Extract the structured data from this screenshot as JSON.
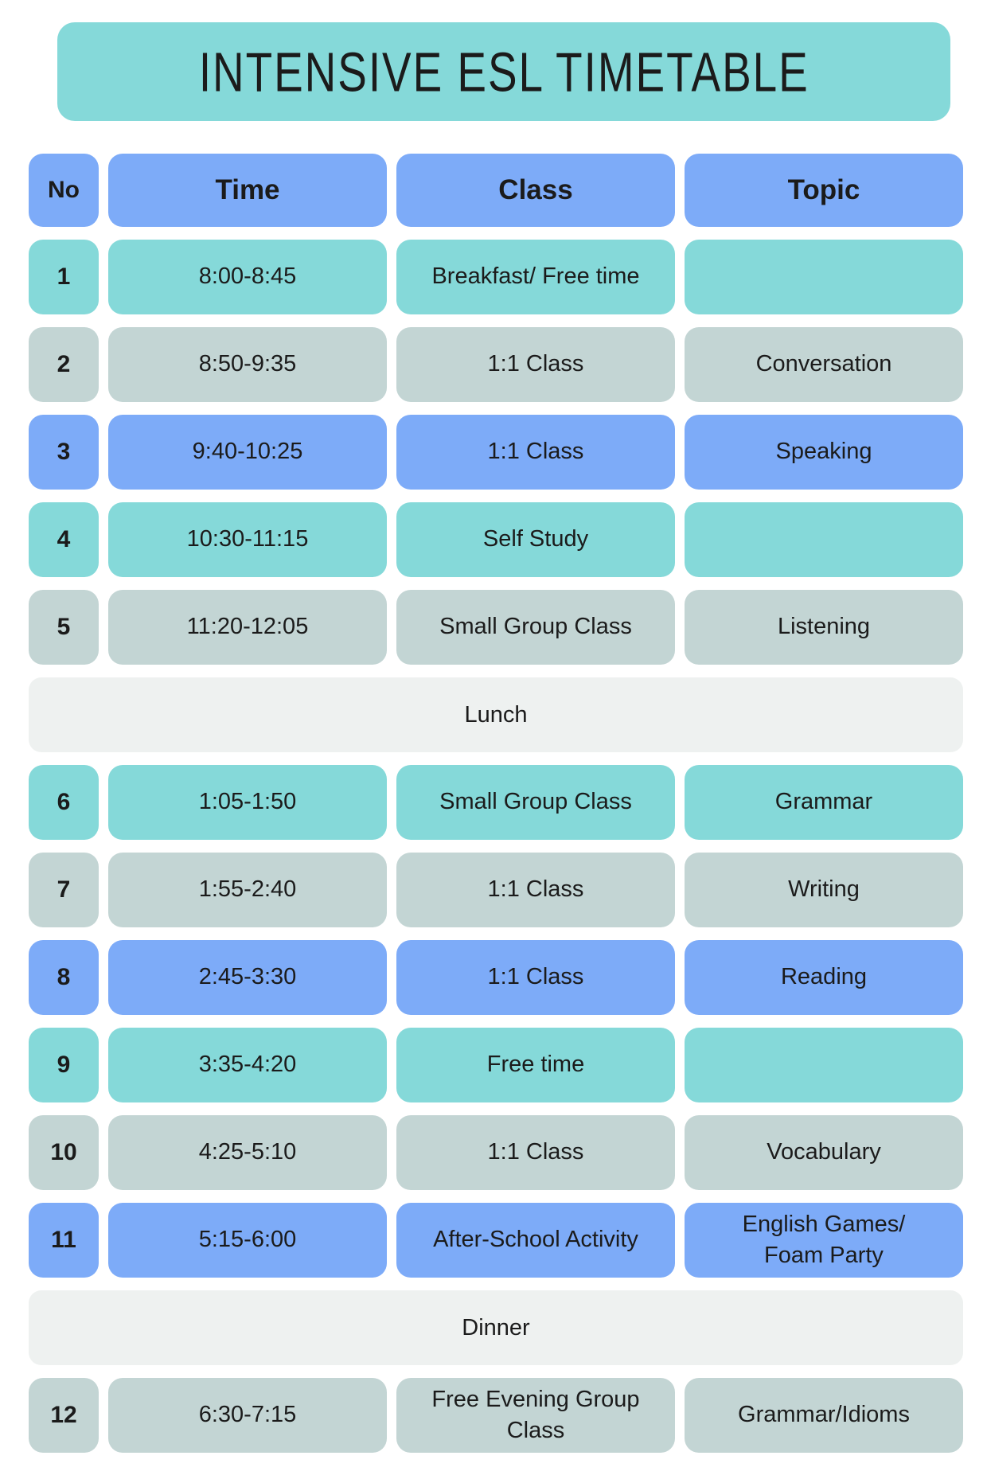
{
  "title": "INTENSIVE ESL TIMETABLE",
  "colors": {
    "teal": "#85d9d9",
    "blue": "#7dabf8",
    "gray": "#c3d5d4",
    "band": "#eef1f0",
    "ink": "#1b1b1b"
  },
  "table": {
    "headers": [
      "No",
      "Time",
      "Class",
      "Topic"
    ],
    "rows": [
      {
        "no": "1",
        "time": "8:00-8:45",
        "class": "Breakfast/ Free time",
        "topic": "",
        "variant": "teal"
      },
      {
        "no": "2",
        "time": "8:50-9:35",
        "class": "1:1 Class",
        "topic": "Conversation",
        "variant": "gray"
      },
      {
        "no": "3",
        "time": "9:40-10:25",
        "class": "1:1 Class",
        "topic": "Speaking",
        "variant": "blue"
      },
      {
        "no": "4",
        "time": "10:30-11:15",
        "class": "Self Study",
        "topic": "",
        "variant": "teal"
      },
      {
        "no": "5",
        "time": "11:20-12:05",
        "class": "Small Group Class",
        "topic": "Listening",
        "variant": "gray"
      },
      {
        "band": "Lunch"
      },
      {
        "no": "6",
        "time": "1:05-1:50",
        "class": "Small Group Class",
        "topic": "Grammar",
        "variant": "teal"
      },
      {
        "no": "7",
        "time": "1:55-2:40",
        "class": "1:1 Class",
        "topic": "Writing",
        "variant": "gray"
      },
      {
        "no": "8",
        "time": "2:45-3:30",
        "class": "1:1 Class",
        "topic": "Reading",
        "variant": "blue"
      },
      {
        "no": "9",
        "time": "3:35-4:20",
        "class": "Free time",
        "topic": "",
        "variant": "teal"
      },
      {
        "no": "10",
        "time": "4:25-5:10",
        "class": "1:1 Class",
        "topic": "Vocabulary",
        "variant": "gray"
      },
      {
        "no": "11",
        "time": "5:15-6:00",
        "class": "After-School Activity",
        "topic": "English Games/\nFoam Party",
        "variant": "blue"
      },
      {
        "band": "Dinner"
      },
      {
        "no": "12",
        "time": "6:30-7:15",
        "class": "Free Evening Group\nClass",
        "topic": "Grammar/Idioms",
        "variant": "gray"
      }
    ]
  }
}
